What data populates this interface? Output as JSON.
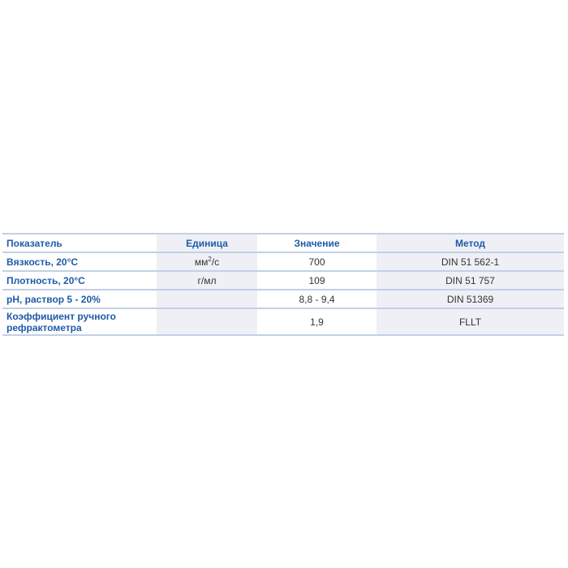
{
  "table": {
    "headers": [
      "Показатель",
      "Единица",
      "Значение",
      "Метод"
    ],
    "rows": [
      {
        "param": "Вязкость, 20°C",
        "unit_base": "мм",
        "unit_sup": "2",
        "unit_tail": "/с",
        "value": "700",
        "method": "DIN 51 562-1"
      },
      {
        "param": "Плотность, 20°C",
        "unit": "г/мл",
        "value": "109",
        "method": "DIN 51 757"
      },
      {
        "param": "pH, раствор 5 - 20%",
        "unit": "",
        "value": "8,8 - 9,4",
        "method": "DIN 51369"
      },
      {
        "param_line1": "Коэффициент ручного",
        "param_line2": "рефрактометра",
        "unit": "",
        "value": "1,9",
        "method": "FLLT"
      }
    ]
  },
  "colors": {
    "header_text": "#1f5ba8",
    "shade": "#eef0f6",
    "rule": "#c3d0e4"
  }
}
